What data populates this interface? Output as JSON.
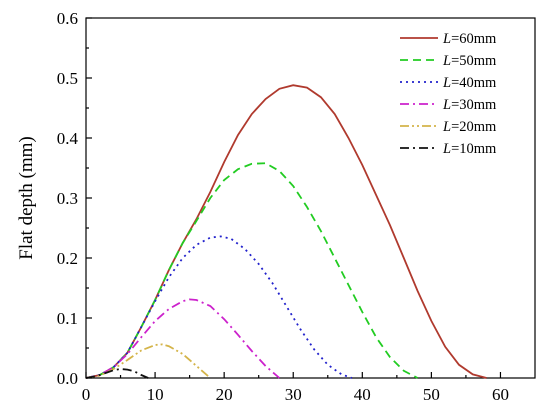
{
  "chart_data": {
    "type": "line",
    "xlabel": "",
    "ylabel": "Flat depth (mm)",
    "xlim": [
      0,
      65
    ],
    "ylim": [
      0,
      0.6
    ],
    "xticks": [
      "0",
      "10",
      "20",
      "30",
      "40",
      "50",
      "60"
    ],
    "xtick_values": [
      0,
      10,
      20,
      30,
      40,
      50,
      60
    ],
    "yticks": [
      "0.0",
      "0.1",
      "0.2",
      "0.3",
      "0.4",
      "0.5",
      "0.6"
    ],
    "ytick_values": [
      0,
      0.1,
      0.2,
      0.3,
      0.4,
      0.5,
      0.6
    ],
    "grid": false,
    "legend_position": "top-right",
    "series": [
      {
        "name": "L=60mm",
        "name_italic": "L",
        "name_rest": "=60mm",
        "color": "#b03a2e",
        "dash": "solid",
        "x": [
          0,
          2,
          4,
          6,
          8,
          10,
          12,
          14,
          16,
          18,
          20,
          22,
          24,
          26,
          28,
          30,
          32,
          34,
          36,
          38,
          40,
          42,
          44,
          46,
          48,
          50,
          52,
          54,
          56,
          58
        ],
        "y": [
          0,
          0.005,
          0.018,
          0.042,
          0.085,
          0.13,
          0.18,
          0.225,
          0.265,
          0.31,
          0.36,
          0.405,
          0.44,
          0.465,
          0.482,
          0.488,
          0.484,
          0.468,
          0.44,
          0.4,
          0.355,
          0.305,
          0.255,
          0.2,
          0.145,
          0.095,
          0.052,
          0.022,
          0.006,
          0
        ]
      },
      {
        "name": "L=50mm",
        "name_italic": "L",
        "name_rest": "=50mm",
        "color": "#22cc22",
        "dash": "dashed",
        "x": [
          0,
          2,
          4,
          6,
          8,
          10,
          12,
          14,
          16,
          18,
          20,
          22,
          24,
          26,
          28,
          30,
          32,
          34,
          36,
          38,
          40,
          42,
          44,
          46,
          48
        ],
        "y": [
          0,
          0.005,
          0.018,
          0.042,
          0.085,
          0.13,
          0.18,
          0.225,
          0.262,
          0.3,
          0.33,
          0.348,
          0.357,
          0.358,
          0.345,
          0.32,
          0.285,
          0.245,
          0.2,
          0.155,
          0.11,
          0.068,
          0.035,
          0.012,
          0
        ]
      },
      {
        "name": "L=40mm",
        "name_italic": "L",
        "name_rest": "=40mm",
        "color": "#2222cc",
        "dash": "dotted",
        "x": [
          0,
          2,
          4,
          6,
          8,
          10,
          12,
          14,
          16,
          18,
          19.5,
          21,
          23,
          25,
          27,
          29,
          31,
          33,
          35,
          37,
          38.5
        ],
        "y": [
          0,
          0.005,
          0.018,
          0.042,
          0.085,
          0.128,
          0.168,
          0.2,
          0.222,
          0.234,
          0.236,
          0.232,
          0.215,
          0.19,
          0.158,
          0.12,
          0.082,
          0.048,
          0.022,
          0.006,
          0
        ]
      },
      {
        "name": "L=30mm",
        "name_italic": "L",
        "name_rest": "=30mm",
        "color": "#cc22cc",
        "dash": "dashdot",
        "x": [
          0,
          2,
          4,
          6,
          8,
          10,
          12,
          14,
          15,
          16,
          18,
          20,
          22,
          24,
          26,
          28
        ],
        "y": [
          0,
          0.005,
          0.018,
          0.04,
          0.068,
          0.095,
          0.115,
          0.128,
          0.131,
          0.13,
          0.12,
          0.098,
          0.072,
          0.045,
          0.02,
          0
        ]
      },
      {
        "name": "L=20mm",
        "name_italic": "L",
        "name_rest": "=20mm",
        "color": "#d4b44a",
        "dash": "dashdotdot",
        "x": [
          0,
          2,
          4,
          6,
          8,
          10,
          11,
          12,
          14,
          16,
          18
        ],
        "y": [
          0,
          0.004,
          0.015,
          0.03,
          0.046,
          0.055,
          0.056,
          0.053,
          0.04,
          0.02,
          0
        ]
      },
      {
        "name": "L=10mm",
        "name_italic": "L",
        "name_rest": "=10mm",
        "color": "#111111",
        "dash": "dashdot",
        "x": [
          0,
          1,
          2,
          3,
          4,
          5,
          6,
          7,
          8,
          9
        ],
        "y": [
          0,
          0.002,
          0.005,
          0.009,
          0.013,
          0.015,
          0.014,
          0.011,
          0.005,
          0
        ]
      }
    ]
  }
}
